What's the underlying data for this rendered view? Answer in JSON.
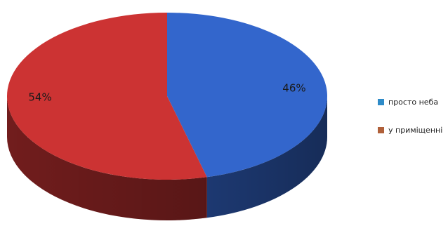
{
  "chart_data": {
    "type": "pie",
    "style": "3d",
    "title": "",
    "categories": [
      "просто неба",
      "у приміщенні"
    ],
    "values": [
      46,
      54
    ],
    "labels": [
      "46%",
      "54%"
    ],
    "colors": [
      "#3366CC",
      "#CC3333"
    ],
    "legend_colors": [
      "#2E8BC8",
      "#B0603A"
    ],
    "legend_position": "right"
  }
}
